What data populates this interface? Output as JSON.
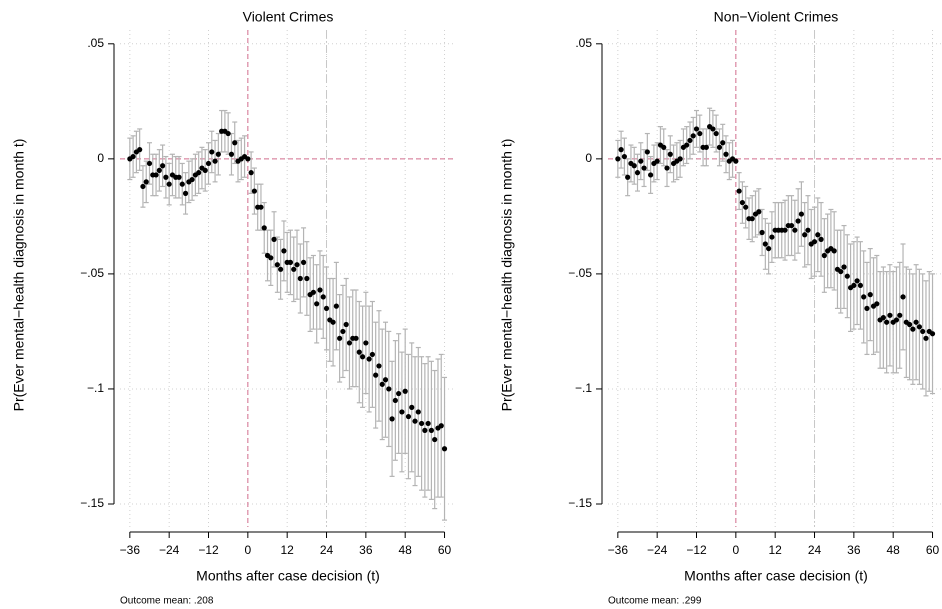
{
  "chart_data": [
    {
      "type": "scatter",
      "title": "Violent Crimes",
      "x_label": "Months after case decision (t)",
      "y_label": "Pr(Ever mental−health diagnosis in month t)",
      "note": "Outcome mean: .208",
      "x": [
        -36,
        -35,
        -34,
        -33,
        -32,
        -31,
        -30,
        -29,
        -28,
        -27,
        -26,
        -25,
        -24,
        -23,
        -22,
        -21,
        -20,
        -19,
        -18,
        -17,
        -16,
        -15,
        -14,
        -13,
        -12,
        -11,
        -10,
        -9,
        -8,
        -7,
        -6,
        -5,
        -4,
        -3,
        -2,
        -1,
        0,
        1,
        2,
        3,
        4,
        5,
        6,
        7,
        8,
        9,
        10,
        11,
        12,
        13,
        14,
        15,
        16,
        17,
        18,
        19,
        20,
        21,
        22,
        23,
        24,
        25,
        26,
        27,
        28,
        29,
        30,
        31,
        32,
        33,
        34,
        35,
        36,
        37,
        38,
        39,
        40,
        41,
        42,
        43,
        44,
        45,
        46,
        47,
        48,
        49,
        50,
        51,
        52,
        53,
        54,
        55,
        56,
        57,
        58,
        59,
        60
      ],
      "values": [
        0.0,
        0.001,
        0.003,
        0.004,
        -0.012,
        -0.01,
        -0.002,
        -0.007,
        -0.007,
        -0.005,
        -0.003,
        -0.008,
        -0.011,
        -0.007,
        -0.008,
        -0.008,
        -0.011,
        -0.015,
        -0.01,
        -0.009,
        -0.007,
        -0.006,
        -0.004,
        -0.005,
        -0.002,
        0.003,
        -0.001,
        0.002,
        0.012,
        0.012,
        0.011,
        0.002,
        0.007,
        -0.001,
        0.0,
        0.001,
        0.0,
        -0.006,
        -0.014,
        -0.021,
        -0.021,
        -0.03,
        -0.042,
        -0.043,
        -0.035,
        -0.046,
        -0.048,
        -0.04,
        -0.045,
        -0.045,
        -0.048,
        -0.046,
        -0.052,
        -0.045,
        -0.052,
        -0.059,
        -0.058,
        -0.063,
        -0.057,
        -0.06,
        -0.065,
        -0.07,
        -0.071,
        -0.064,
        -0.078,
        -0.075,
        -0.072,
        -0.08,
        -0.078,
        -0.078,
        -0.084,
        -0.086,
        -0.08,
        -0.087,
        -0.085,
        -0.094,
        -0.09,
        -0.098,
        -0.096,
        -0.1,
        -0.113,
        -0.105,
        -0.102,
        -0.11,
        -0.101,
        -0.112,
        -0.108,
        -0.114,
        -0.11,
        -0.115,
        -0.118,
        -0.115,
        -0.118,
        -0.122,
        -0.117,
        -0.116,
        -0.126
      ],
      "errors": [
        0.009,
        0.009,
        0.009,
        0.009,
        0.009,
        0.009,
        0.009,
        0.009,
        0.009,
        0.009,
        0.009,
        0.009,
        0.009,
        0.009,
        0.009,
        0.009,
        0.009,
        0.009,
        0.009,
        0.009,
        0.009,
        0.009,
        0.009,
        0.009,
        0.009,
        0.009,
        0.009,
        0.009,
        0.009,
        0.009,
        0.009,
        0.009,
        0.009,
        0.009,
        0.009,
        0.009,
        0,
        0.009,
        0.01,
        0.01,
        0.01,
        0.011,
        0.011,
        0.012,
        0.012,
        0.012,
        0.013,
        0.013,
        0.013,
        0.014,
        0.014,
        0.015,
        0.015,
        0.015,
        0.016,
        0.016,
        0.016,
        0.017,
        0.017,
        0.018,
        0.018,
        0.018,
        0.019,
        0.019,
        0.019,
        0.02,
        0.02,
        0.02,
        0.021,
        0.021,
        0.022,
        0.022,
        0.022,
        0.023,
        0.023,
        0.023,
        0.024,
        0.024,
        0.025,
        0.025,
        0.025,
        0.026,
        0.026,
        0.026,
        0.027,
        0.027,
        0.028,
        0.028,
        0.028,
        0.029,
        0.029,
        0.029,
        0.03,
        0.03,
        0.03,
        0.031,
        0.031
      ],
      "color": "#000000",
      "error_color": "#b4b4b4",
      "xlim": [
        -39,
        63.5
      ],
      "ylim": [
        -0.16,
        0.056
      ],
      "xticks": [
        {
          "value": -36,
          "label": "−36"
        },
        {
          "value": -24,
          "label": "−24"
        },
        {
          "value": -12,
          "label": "−12"
        },
        0,
        12,
        24,
        36,
        48,
        60
      ],
      "yticks": [
        {
          "value": 0.05,
          "label": ".05"
        },
        0,
        {
          "value": -0.05,
          "label": "−.05"
        },
        {
          "value": -0.1,
          "label": "−.1"
        },
        {
          "value": -0.15,
          "label": "−.15"
        }
      ],
      "grid": true,
      "xline": 0,
      "xline2": 24,
      "yline": 0
    },
    {
      "type": "scatter",
      "title": "Non−Violent Crimes",
      "x_label": "Months after case decision (t)",
      "y_label": "Pr(Ever mental−health diagnosis in month t)",
      "note": "Outcome mean: .299",
      "x": [
        -36,
        -35,
        -34,
        -33,
        -32,
        -31,
        -30,
        -29,
        -28,
        -27,
        -26,
        -25,
        -24,
        -23,
        -22,
        -21,
        -20,
        -19,
        -18,
        -17,
        -16,
        -15,
        -14,
        -13,
        -12,
        -11,
        -10,
        -9,
        -8,
        -7,
        -6,
        -5,
        -4,
        -3,
        -2,
        -1,
        0,
        1,
        2,
        3,
        4,
        5,
        6,
        7,
        8,
        9,
        10,
        11,
        12,
        13,
        14,
        15,
        16,
        17,
        18,
        19,
        20,
        21,
        22,
        23,
        24,
        25,
        26,
        27,
        28,
        29,
        30,
        31,
        32,
        33,
        34,
        35,
        36,
        37,
        38,
        39,
        40,
        41,
        42,
        43,
        44,
        45,
        46,
        47,
        48,
        49,
        50,
        51,
        52,
        53,
        54,
        55,
        56,
        57,
        58,
        59,
        60
      ],
      "values": [
        0.0,
        0.004,
        0.001,
        -0.008,
        -0.002,
        -0.003,
        -0.006,
        -0.001,
        -0.004,
        0.003,
        -0.007,
        -0.002,
        -0.001,
        0.006,
        0.005,
        -0.004,
        0.002,
        -0.002,
        -0.001,
        0.0,
        0.005,
        0.006,
        0.008,
        0.01,
        0.013,
        0.011,
        0.005,
        0.005,
        0.014,
        0.013,
        0.011,
        0.005,
        0.007,
        0.002,
        -0.001,
        0.0,
        -0.001,
        -0.014,
        -0.019,
        -0.021,
        -0.026,
        -0.026,
        -0.024,
        -0.023,
        -0.032,
        -0.037,
        -0.039,
        -0.034,
        -0.031,
        -0.031,
        -0.031,
        -0.031,
        -0.029,
        -0.029,
        -0.031,
        -0.027,
        -0.024,
        -0.033,
        -0.031,
        -0.037,
        -0.036,
        -0.033,
        -0.035,
        -0.042,
        -0.04,
        -0.039,
        -0.04,
        -0.048,
        -0.049,
        -0.047,
        -0.051,
        -0.056,
        -0.055,
        -0.053,
        -0.055,
        -0.06,
        -0.065,
        -0.059,
        -0.064,
        -0.063,
        -0.07,
        -0.069,
        -0.071,
        -0.068,
        -0.071,
        -0.07,
        -0.068,
        -0.06,
        -0.071,
        -0.072,
        -0.074,
        -0.071,
        -0.073,
        -0.075,
        -0.078,
        -0.075,
        -0.076
      ],
      "errors": [
        0.008,
        0.008,
        0.008,
        0.008,
        0.008,
        0.008,
        0.008,
        0.008,
        0.008,
        0.008,
        0.008,
        0.008,
        0.008,
        0.008,
        0.008,
        0.008,
        0.008,
        0.008,
        0.008,
        0.008,
        0.008,
        0.008,
        0.008,
        0.008,
        0.008,
        0.008,
        0.008,
        0.008,
        0.008,
        0.008,
        0.008,
        0.008,
        0.008,
        0.008,
        0.008,
        0.008,
        0,
        0.008,
        0.009,
        0.009,
        0.009,
        0.01,
        0.01,
        0.01,
        0.01,
        0.011,
        0.011,
        0.011,
        0.012,
        0.012,
        0.012,
        0.013,
        0.013,
        0.013,
        0.013,
        0.014,
        0.014,
        0.014,
        0.015,
        0.015,
        0.015,
        0.016,
        0.016,
        0.016,
        0.016,
        0.017,
        0.017,
        0.017,
        0.018,
        0.018,
        0.018,
        0.019,
        0.019,
        0.019,
        0.019,
        0.02,
        0.02,
        0.02,
        0.021,
        0.021,
        0.021,
        0.022,
        0.022,
        0.022,
        0.022,
        0.023,
        0.023,
        0.023,
        0.024,
        0.024,
        0.024,
        0.025,
        0.025,
        0.025,
        0.025,
        0.026,
        0.026
      ],
      "color": "#000000",
      "error_color": "#b4b4b4",
      "xlim": [
        -39,
        63.5
      ],
      "ylim": [
        -0.16,
        0.056
      ],
      "xticks": [
        {
          "value": -36,
          "label": "−36"
        },
        {
          "value": -24,
          "label": "−24"
        },
        {
          "value": -12,
          "label": "−12"
        },
        0,
        12,
        24,
        36,
        48,
        60
      ],
      "yticks": [
        {
          "value": 0.05,
          "label": ".05"
        },
        0,
        {
          "value": -0.05,
          "label": "−.05"
        },
        {
          "value": -0.1,
          "label": "−.1"
        },
        {
          "value": -0.15,
          "label": "−.15"
        }
      ],
      "grid": true,
      "xline": 0,
      "xline2": 24,
      "yline": 0
    }
  ]
}
